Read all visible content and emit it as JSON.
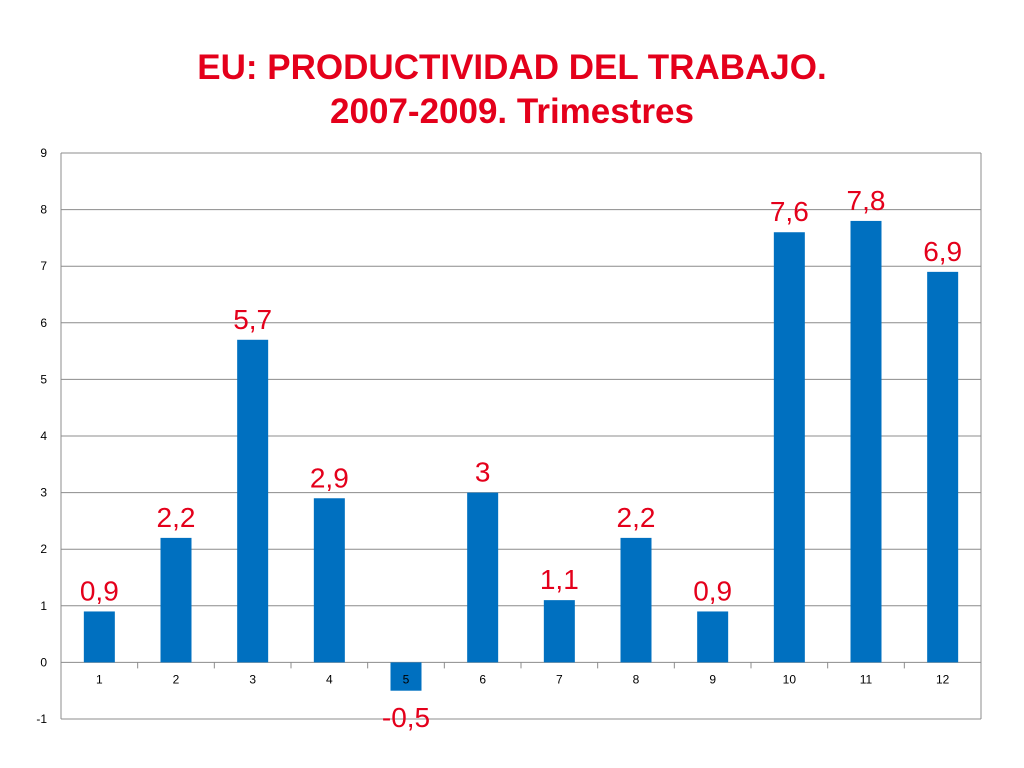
{
  "chart_data": {
    "type": "bar",
    "title_line1": "EU: PRODUCTIVIDAD DEL TRABAJO.",
    "title_line2": "2007-2009. Trimestres",
    "categories": [
      "1",
      "2",
      "3",
      "4",
      "5",
      "6",
      "7",
      "8",
      "9",
      "10",
      "11",
      "12"
    ],
    "values": [
      0.9,
      2.2,
      5.7,
      2.9,
      -0.5,
      3,
      1.1,
      2.2,
      0.9,
      7.6,
      7.8,
      6.9
    ],
    "data_labels": [
      "0,9",
      "2,2",
      "5,7",
      "2,9",
      "-0,5",
      "3",
      "1,1",
      "2,2",
      "0,9",
      "7,6",
      "7,8",
      "6,9"
    ],
    "yticks": [
      "-1",
      "0",
      "1",
      "2",
      "3",
      "4",
      "5",
      "6",
      "7",
      "8",
      "9"
    ],
    "ylim": [
      -1,
      9
    ],
    "xlabel": "",
    "ylabel": "",
    "grid": true,
    "legend": "none",
    "bar_color": "#0070c0",
    "label_color": "#e4001b"
  }
}
